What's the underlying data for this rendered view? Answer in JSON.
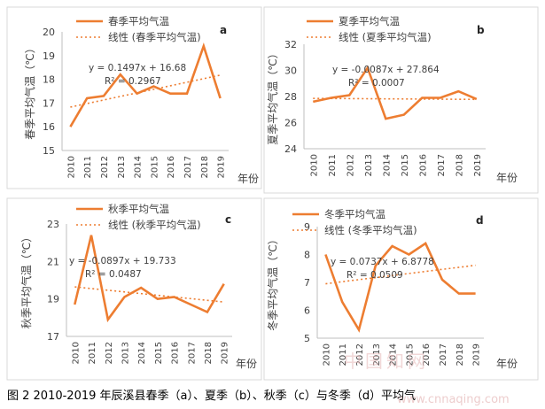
{
  "caption": "图 2 2010-2019 年辰溪县春季（a）、夏季（b）、秋季（c）与冬季（d）平均气",
  "watermark": "中国知网",
  "watermark_url": "www.cnnaqing.com",
  "colors": {
    "series": "#ED7D31",
    "axis": "#bfbfbf",
    "border": "#d9d9d9"
  },
  "chart_data": [
    {
      "type": "line",
      "panel_label": "a",
      "x": [
        2010,
        2011,
        2012,
        2013,
        2014,
        2015,
        2016,
        2017,
        2018,
        2019
      ],
      "series": [
        {
          "name": "春季平均气温",
          "values": [
            16.0,
            17.2,
            17.3,
            18.2,
            17.4,
            17.7,
            17.4,
            17.4,
            19.4,
            17.2
          ]
        }
      ],
      "trendline": {
        "name": "线性 (春季平均气温)",
        "slope": 0.1497,
        "intercept": 16.68,
        "equation": "y = 0.1497x + 16.68",
        "r2": "R² = 0.2967"
      },
      "ylabel": "春季平均气温（℃）",
      "xlabel": "年份",
      "ylim": [
        15,
        20
      ],
      "yticks": [
        15,
        16,
        17,
        18,
        19,
        20
      ]
    },
    {
      "type": "line",
      "panel_label": "b",
      "x": [
        2010,
        2011,
        2012,
        2013,
        2014,
        2015,
        2016,
        2017,
        2018,
        2019
      ],
      "series": [
        {
          "name": "夏季平均气温",
          "values": [
            27.6,
            27.9,
            28.1,
            30.2,
            26.3,
            26.6,
            27.9,
            27.9,
            28.4,
            27.8
          ]
        }
      ],
      "trendline": {
        "name": "线性 (夏季平均气温)",
        "slope": -0.0087,
        "intercept": 27.864,
        "equation": "y = -0.0087x + 27.864",
        "r2": "R² = 0.0007"
      },
      "ylabel": "夏季平均气温（℃）",
      "xlabel": "年份",
      "ylim": [
        24,
        32
      ],
      "yticks": [
        24,
        26,
        28,
        30,
        32
      ]
    },
    {
      "type": "line",
      "panel_label": "c",
      "x": [
        2010,
        2011,
        2012,
        2013,
        2014,
        2015,
        2016,
        2017,
        2018,
        2019
      ],
      "series": [
        {
          "name": "秋季平均气温",
          "values": [
            18.7,
            22.4,
            17.9,
            19.1,
            19.6,
            19.0,
            19.1,
            18.7,
            18.3,
            19.8
          ]
        }
      ],
      "trendline": {
        "name": "线性 (秋季平均气温)",
        "slope": -0.0897,
        "intercept": 19.733,
        "equation": "y = -0.0897x + 19.733",
        "r2": "R² = 0.0487"
      },
      "ylabel": "秋季平均气温（℃）",
      "xlabel": "年份",
      "ylim": [
        17,
        23
      ],
      "yticks": [
        17,
        19,
        21,
        23
      ]
    },
    {
      "type": "line",
      "panel_label": "d",
      "x": [
        2010,
        2011,
        2012,
        2013,
        2014,
        2015,
        2016,
        2017,
        2018,
        2019
      ],
      "series": [
        {
          "name": "冬季平均气温",
          "values": [
            8.0,
            6.3,
            5.3,
            7.6,
            8.3,
            8.0,
            8.4,
            7.1,
            6.6,
            6.6
          ]
        }
      ],
      "trendline": {
        "name": "线性 (冬季平均气温)",
        "slope": 0.0737,
        "intercept": 6.8778,
        "equation": "y = 0.0737x + 6.8778",
        "r2": "R² = 0.0509"
      },
      "ylabel": "冬季平均气温（℃）",
      "xlabel": "年份",
      "ylim": [
        5,
        9
      ],
      "yticks": [
        5,
        6,
        7,
        8,
        9
      ]
    }
  ]
}
